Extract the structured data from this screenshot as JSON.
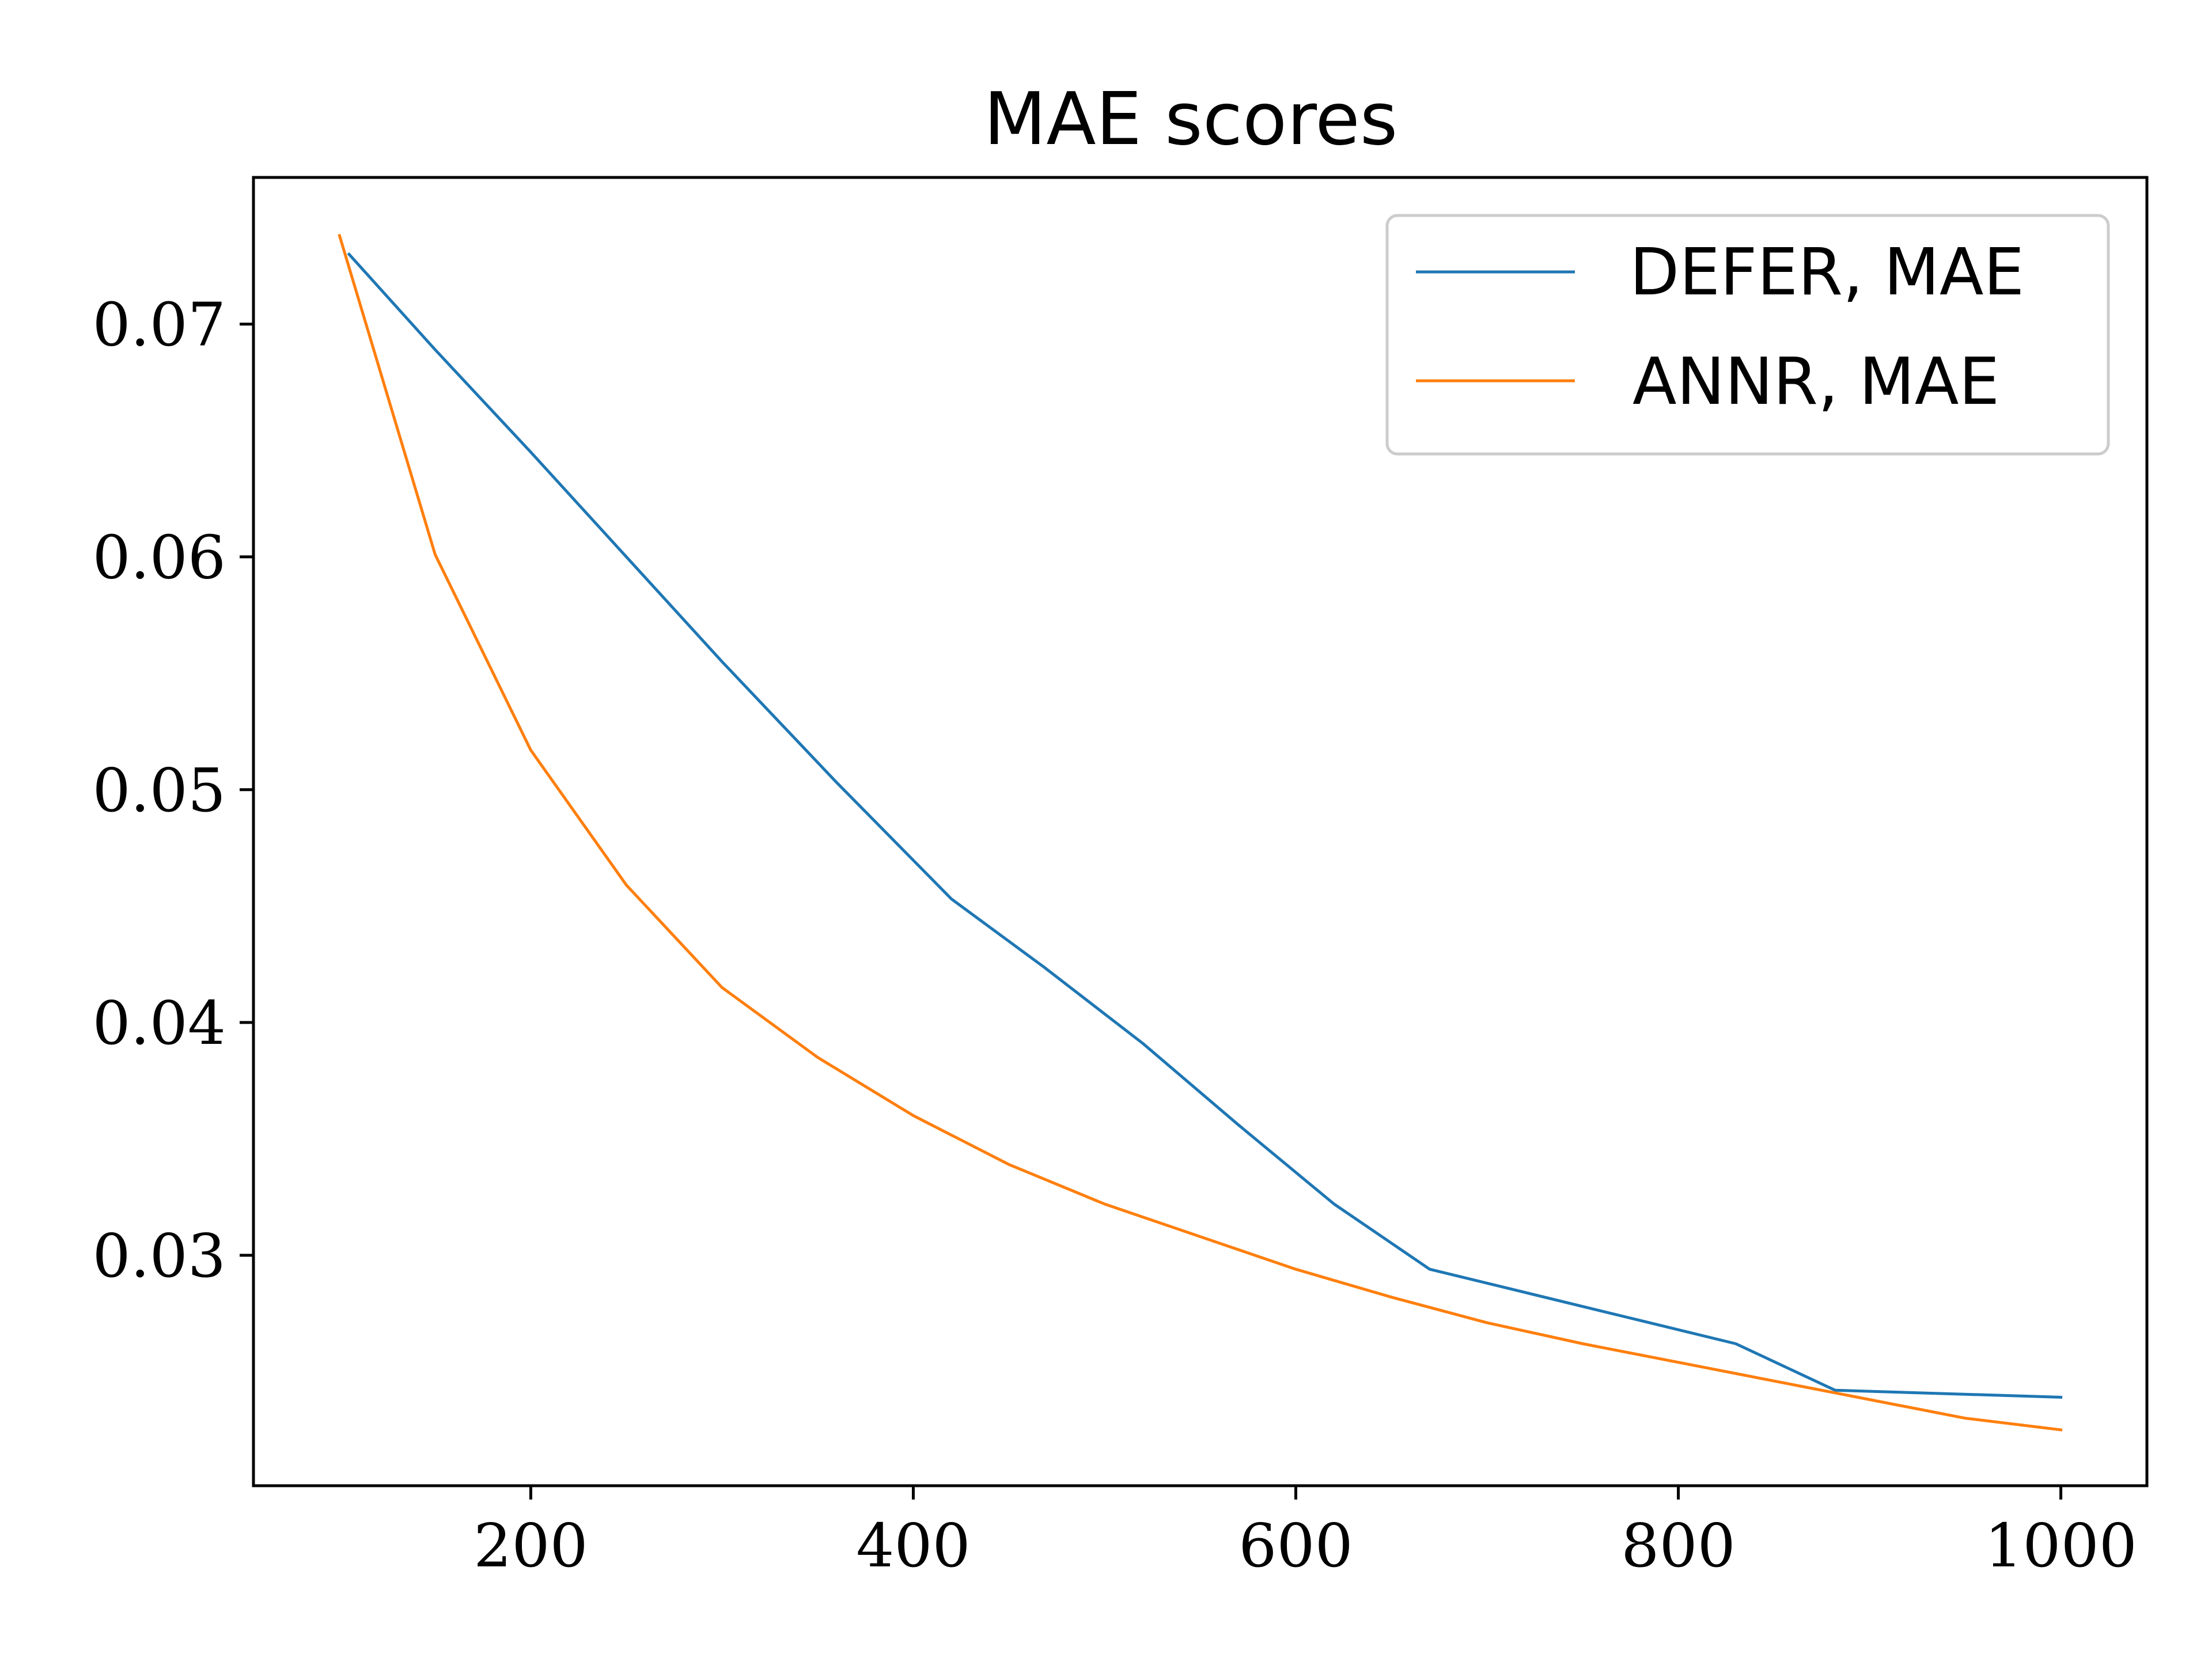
{
  "chart_data": {
    "type": "line",
    "title": "MAE scores",
    "xlabel": "",
    "ylabel": "",
    "xlim": [
      55,
      1045
    ],
    "ylim": [
      0.0201,
      0.0763
    ],
    "x_ticks": [
      200,
      400,
      600,
      800,
      1000
    ],
    "x_tick_labels": [
      "200",
      "400",
      "600",
      "800",
      "1000"
    ],
    "y_ticks": [
      0.03,
      0.04,
      0.05,
      0.06,
      0.07
    ],
    "y_tick_labels": [
      "0.03",
      "0.04",
      "0.05",
      "0.06",
      "0.07"
    ],
    "grid": false,
    "legend": {
      "position": "top-right"
    },
    "series": [
      {
        "name": "DEFER, MAE",
        "color": "#1f77b4",
        "x": [
          105,
          150,
          200,
          250,
          300,
          360,
          420,
          468,
          520,
          570,
          620,
          670,
          720,
          780,
          830,
          882,
          1000
        ],
        "y": [
          0.073,
          0.0689,
          0.0645,
          0.06,
          0.0555,
          0.0503,
          0.0453,
          0.0424,
          0.0391,
          0.0356,
          0.0322,
          0.0294,
          0.0284,
          0.0272,
          0.0262,
          0.0242,
          0.0239
        ]
      },
      {
        "name": "ANNR, MAE",
        "color": "#ff7f0e",
        "x": [
          100,
          150,
          200,
          250,
          300,
          350,
          400,
          450,
          500,
          550,
          600,
          650,
          700,
          750,
          800,
          850,
          900,
          950,
          1000
        ],
        "y": [
          0.0738,
          0.0601,
          0.0517,
          0.0459,
          0.0415,
          0.0385,
          0.036,
          0.0339,
          0.0322,
          0.0308,
          0.0294,
          0.0282,
          0.0271,
          0.0262,
          0.0254,
          0.0246,
          0.0238,
          0.023,
          0.0225
        ]
      }
    ]
  }
}
